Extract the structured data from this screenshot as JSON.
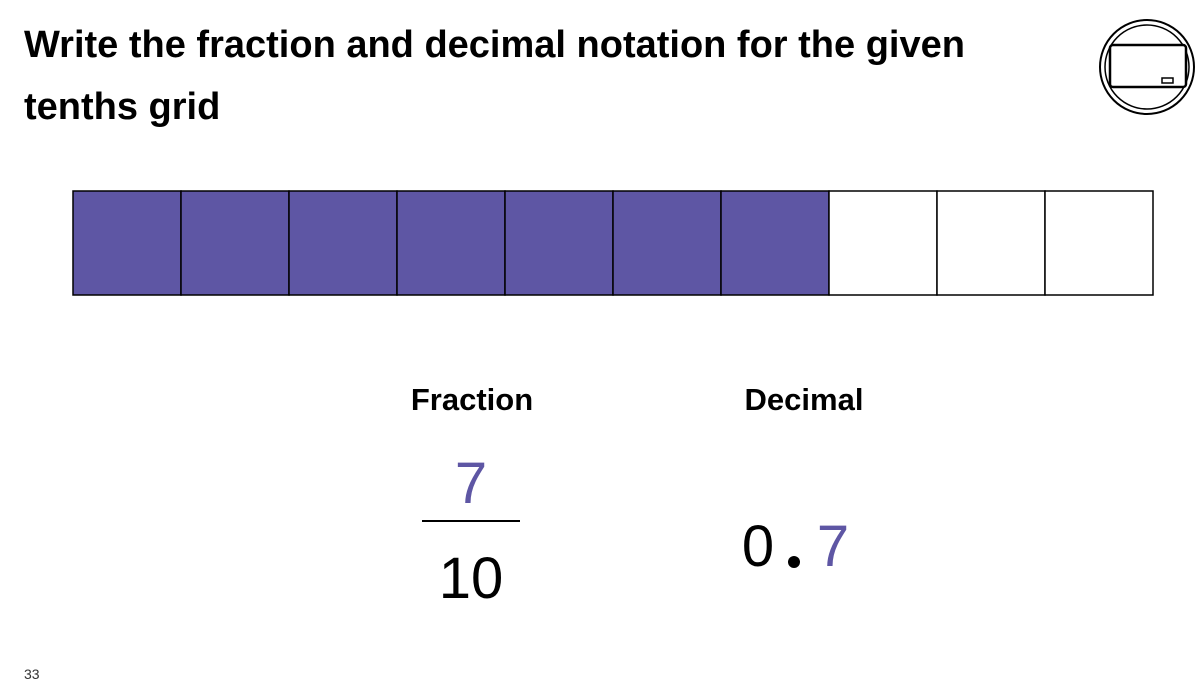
{
  "header": {
    "title": "Write the fraction and decimal notation for the given tenths grid"
  },
  "grid": {
    "cells": 10,
    "shaded": 7,
    "color": "#5e56a4"
  },
  "fraction": {
    "label": "Fraction",
    "numerator": "7",
    "denominator": "10"
  },
  "decimal": {
    "label": "Decimal",
    "whole": "0",
    "tenths": "7"
  },
  "footer": {
    "page": "33"
  }
}
